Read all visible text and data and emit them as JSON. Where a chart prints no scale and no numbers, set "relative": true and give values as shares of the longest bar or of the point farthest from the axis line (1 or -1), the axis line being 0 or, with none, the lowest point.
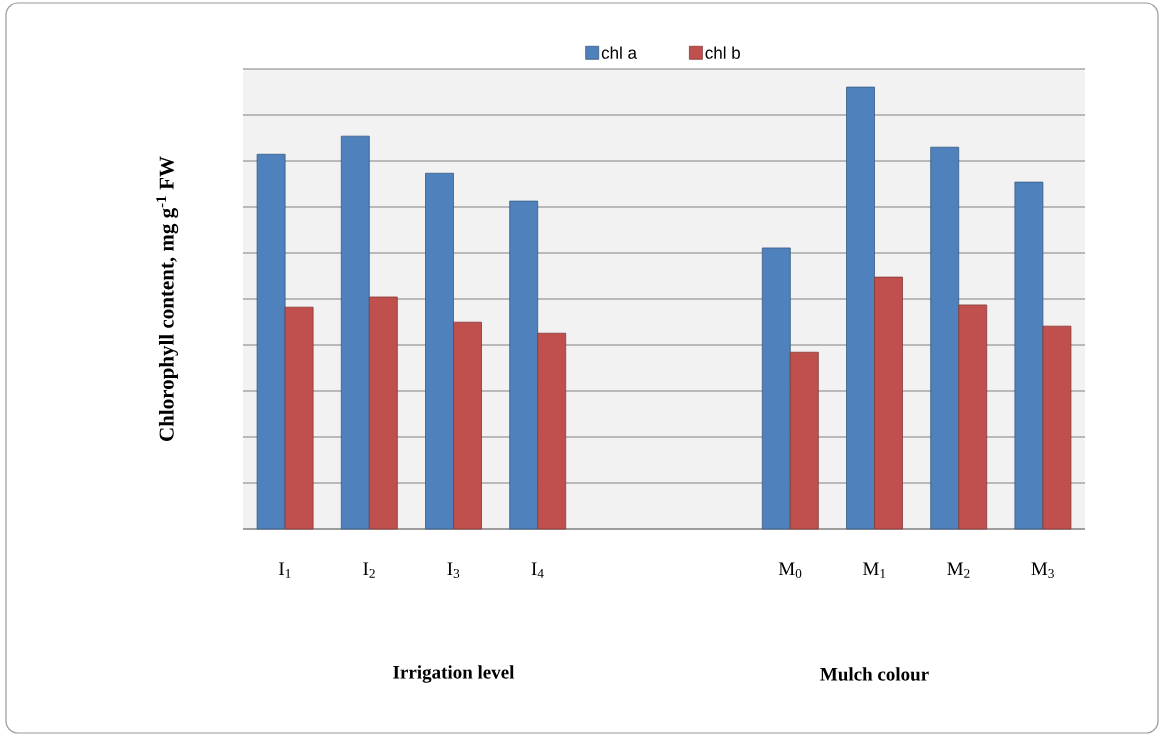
{
  "chart_data": {
    "type": "bar",
    "relative": true,
    "ylabel": "Chlorophyll content, mg g$^{-1}$ FW",
    "categories": [
      "I$_{1}$",
      "I$_{2}$",
      "I$_{3}$",
      "I$_{4}$",
      null,
      null,
      "M$_{0}$",
      "M$_{1}$",
      "M$_{2}$",
      "M$_{3}$"
    ],
    "series": [
      {
        "name": "chl a",
        "color": "#4f81bd",
        "values": [
          0.848,
          0.889,
          0.805,
          0.742,
          null,
          null,
          0.636,
          1.0,
          0.864,
          0.785
        ]
      },
      {
        "name": "chl b",
        "color": "#c0504d",
        "values": [
          0.502,
          0.525,
          0.468,
          0.443,
          null,
          null,
          0.4,
          0.57,
          0.507,
          0.459
        ]
      }
    ],
    "annotations": [
      "Irrigation level",
      "Mulch colour"
    ],
    "grid": "y",
    "legend": "top"
  }
}
